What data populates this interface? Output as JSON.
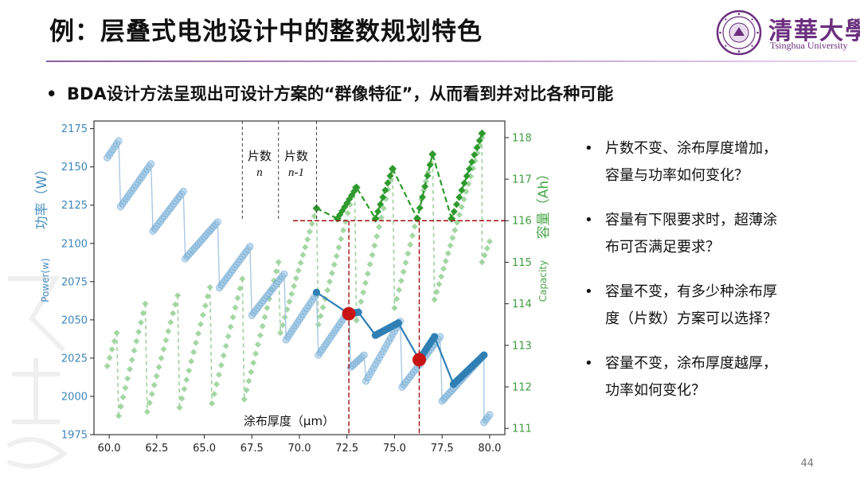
{
  "title": "例：层叠式电池设计中的整数规划特色",
  "logo": {
    "cn": "清華大學",
    "en": "Tsinghua University"
  },
  "main_bullet": "BDA设计方法呈现出可设计方案的“群像特征”，从而看到并对比各种可能",
  "questions": [
    {
      "line1": "片数不变、涂布厚度增加，",
      "line2": "容量与功率如何变化？"
    },
    {
      "line1": "容量有下限要求时，超薄涂",
      "line2": "布可否满足要求？"
    },
    {
      "line1": "容量不变，有多少种涂布厚",
      "line2": "度（片数）方案可以选择？"
    },
    {
      "line1": "容量不变，涂布厚度越厚，",
      "line2": "功率如何变化？"
    }
  ],
  "page_number": "44",
  "colors": {
    "power": "#2f7fb5",
    "capacity": "#2e9a2e",
    "marker": "#c81414",
    "ref": "#a01010"
  },
  "chart_data": {
    "type": "scatter",
    "xlabel": "涂布厚度（μm）",
    "ylabel_left_cn": "功率（W）",
    "ylabel_left_en": "Power(w)",
    "ylabel_right_cn": "容量（Ah）",
    "ylabel_right_en": "Capacity",
    "xlim": [
      59.2,
      80.8
    ],
    "ylim_left": [
      1975,
      2180
    ],
    "ylim_right": [
      110.85,
      118.4
    ],
    "x_ticks": [
      60.0,
      62.5,
      65.0,
      67.5,
      70.0,
      72.5,
      75.0,
      77.5,
      80.0
    ],
    "x_tick_labels": [
      "60.0",
      "62.5",
      "65.0",
      "67.5",
      "70.0",
      "72.5",
      "75.0",
      "77.5",
      "80.0"
    ],
    "y_left_ticks": [
      1975,
      2000,
      2025,
      2050,
      2075,
      2100,
      2125,
      2150,
      2175
    ],
    "y_left_tick_labels": [
      "1975",
      "2000",
      "2025",
      "2050",
      "2075",
      "2100",
      "2125",
      "2150",
      "2175"
    ],
    "y_right_ticks": [
      111,
      112,
      113,
      114,
      115,
      116,
      117,
      118
    ],
    "y_right_tick_labels": [
      "111",
      "112",
      "113",
      "114",
      "115",
      "116",
      "117",
      "118"
    ],
    "annotation": {
      "label1": "片数",
      "var1": "n",
      "label2": "片数",
      "var2": "n-1",
      "x_lines": [
        67.0,
        68.9,
        70.9
      ]
    },
    "capacity_ref_value": 116,
    "highlight_points": [
      {
        "x": 72.6,
        "y": 2054
      },
      {
        "x": 76.3,
        "y": 2024
      }
    ],
    "power_segments": [
      {
        "x0": 59.9,
        "x1": 60.5,
        "y0": 2156,
        "y1": 2167
      },
      {
        "x0": 60.6,
        "x1": 62.2,
        "y0": 2124,
        "y1": 2152
      },
      {
        "x0": 62.3,
        "x1": 63.9,
        "y0": 2108,
        "y1": 2134
      },
      {
        "x0": 64.0,
        "x1": 65.7,
        "y0": 2090,
        "y1": 2114
      },
      {
        "x0": 65.8,
        "x1": 67.4,
        "y0": 2071,
        "y1": 2098
      },
      {
        "x0": 67.5,
        "x1": 69.2,
        "y0": 2053,
        "y1": 2080
      },
      {
        "x0": 69.3,
        "x1": 70.9,
        "y0": 2037,
        "y1": 2067
      },
      {
        "x0": 71.0,
        "x1": 72.6,
        "y0": 2027,
        "y1": 2056
      },
      {
        "x0": 72.7,
        "x1": 73.4,
        "y0": 2019,
        "y1": 2027
      },
      {
        "x0": 73.5,
        "x1": 75.3,
        "y0": 2010,
        "y1": 2049
      },
      {
        "x0": 75.4,
        "x1": 77.4,
        "y0": 2006,
        "y1": 2039
      },
      {
        "x0": 77.5,
        "x1": 79.7,
        "y0": 1997,
        "y1": 2027
      },
      {
        "x0": 79.7,
        "x1": 80.0,
        "y0": 1983,
        "y1": 1988
      }
    ],
    "power_frontier": [
      {
        "x": 70.9,
        "y": 2068
      },
      {
        "x": 72.6,
        "y": 2054
      },
      {
        "x": 73.1,
        "y": 2055
      },
      {
        "x": 74.0,
        "y": 2040
      },
      {
        "x": 75.2,
        "y": 2048
      },
      {
        "x": 76.3,
        "y": 2024
      },
      {
        "x": 77.1,
        "y": 2039
      },
      {
        "x": 78.1,
        "y": 2008
      },
      {
        "x": 79.7,
        "y": 2027
      }
    ],
    "capacity_segments": [
      {
        "x0": 59.9,
        "x1": 60.4,
        "y0": 112.5,
        "y1": 113.3
      },
      {
        "x0": 60.5,
        "x1": 61.9,
        "y0": 111.3,
        "y1": 114.0
      },
      {
        "x0": 62.0,
        "x1": 63.6,
        "y0": 111.4,
        "y1": 114.2
      },
      {
        "x0": 63.7,
        "x1": 65.3,
        "y0": 111.5,
        "y1": 114.4
      },
      {
        "x0": 65.4,
        "x1": 67.0,
        "y0": 111.6,
        "y1": 114.6
      },
      {
        "x0": 67.1,
        "x1": 68.9,
        "y0": 111.7,
        "y1": 115.0
      },
      {
        "x0": 69.0,
        "x1": 70.9,
        "y0": 113.3,
        "y1": 116.3
      },
      {
        "x0": 71.0,
        "x1": 72.9,
        "y0": 113.5,
        "y1": 116.8
      },
      {
        "x0": 73.0,
        "x1": 74.9,
        "y0": 113.6,
        "y1": 117.2
      },
      {
        "x0": 75.0,
        "x1": 77.0,
        "y0": 113.9,
        "y1": 117.6
      },
      {
        "x0": 77.1,
        "x1": 79.6,
        "y0": 114.1,
        "y1": 118.0
      },
      {
        "x0": 79.6,
        "x1": 80.0,
        "y0": 115.0,
        "y1": 115.5
      }
    ],
    "capacity_frontier": [
      {
        "x": 70.9,
        "y": 116.3
      },
      {
        "x": 72.0,
        "y": 116.05
      },
      {
        "x": 73.0,
        "y": 116.8
      },
      {
        "x": 74.0,
        "y": 116.05
      },
      {
        "x": 74.9,
        "y": 117.25
      },
      {
        "x": 76.2,
        "y": 116.05
      },
      {
        "x": 77.0,
        "y": 117.6
      },
      {
        "x": 78.0,
        "y": 116.05
      },
      {
        "x": 79.6,
        "y": 118.1
      }
    ]
  }
}
